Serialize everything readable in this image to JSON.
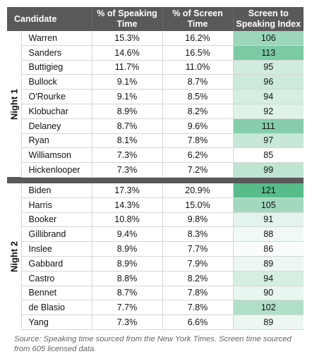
{
  "headers": {
    "candidate": "Candidate",
    "speaking": "% of Speaking Time",
    "screen": "% of Screen Time",
    "index": "Screen to Speaking Index"
  },
  "groups": [
    {
      "label": "Night 1",
      "rows": [
        {
          "candidate": "Warren",
          "speaking": "15.3%",
          "screen": "16.2%",
          "index": "106",
          "index_value": 106
        },
        {
          "candidate": "Sanders",
          "speaking": "14.6%",
          "screen": "16.5%",
          "index": "113",
          "index_value": 113
        },
        {
          "candidate": "Buttigieg",
          "speaking": "11.7%",
          "screen": "11.0%",
          "index": "95",
          "index_value": 95
        },
        {
          "candidate": "Bullock",
          "speaking": "9.1%",
          "screen": "8.7%",
          "index": "96",
          "index_value": 96
        },
        {
          "candidate": "O'Rourke",
          "speaking": "9.1%",
          "screen": "8.5%",
          "index": "94",
          "index_value": 94
        },
        {
          "candidate": "Klobuchar",
          "speaking": "8.9%",
          "screen": "8.2%",
          "index": "92",
          "index_value": 92
        },
        {
          "candidate": "Delaney",
          "speaking": "8.7%",
          "screen": "9.6%",
          "index": "111",
          "index_value": 111
        },
        {
          "candidate": "Ryan",
          "speaking": "8.1%",
          "screen": "7.8%",
          "index": "97",
          "index_value": 97
        },
        {
          "candidate": "Williamson",
          "speaking": "7.3%",
          "screen": "6.2%",
          "index": "85",
          "index_value": 85
        },
        {
          "candidate": "Hickenlooper",
          "speaking": "7.3%",
          "screen": "7.2%",
          "index": "99",
          "index_value": 99
        }
      ]
    },
    {
      "label": "Night 2",
      "rows": [
        {
          "candidate": "Biden",
          "speaking": "17.3%",
          "screen": "20.9%",
          "index": "121",
          "index_value": 121
        },
        {
          "candidate": "Harris",
          "speaking": "14.3%",
          "screen": "15.0%",
          "index": "105",
          "index_value": 105
        },
        {
          "candidate": "Booker",
          "speaking": "10.8%",
          "screen": "9.8%",
          "index": "91",
          "index_value": 91
        },
        {
          "candidate": "Gillibrand",
          "speaking": "9.4%",
          "screen": "8.3%",
          "index": "88",
          "index_value": 88
        },
        {
          "candidate": "Inslee",
          "speaking": "8.9%",
          "screen": "7.7%",
          "index": "86",
          "index_value": 86
        },
        {
          "candidate": "Gabbard",
          "speaking": "8.9%",
          "screen": "7.9%",
          "index": "89",
          "index_value": 89
        },
        {
          "candidate": "Castro",
          "speaking": "8.8%",
          "screen": "8.2%",
          "index": "94",
          "index_value": 94
        },
        {
          "candidate": "Bennet",
          "speaking": "8.7%",
          "screen": "7.8%",
          "index": "90",
          "index_value": 90
        },
        {
          "candidate": "de Blasio",
          "speaking": "7.7%",
          "screen": "7.8%",
          "index": "102",
          "index_value": 102
        },
        {
          "candidate": "Yang",
          "speaking": "7.3%",
          "screen": "6.6%",
          "index": "89",
          "index_value": 89
        }
      ]
    }
  ],
  "colors": {
    "header_bg": "#595959",
    "index_low": "#ffffff",
    "index_high": "#57bb8a"
  },
  "source_note": "Source: Speaking time sourced from the New York Times. Screen time sourced from 605 licensed data."
}
